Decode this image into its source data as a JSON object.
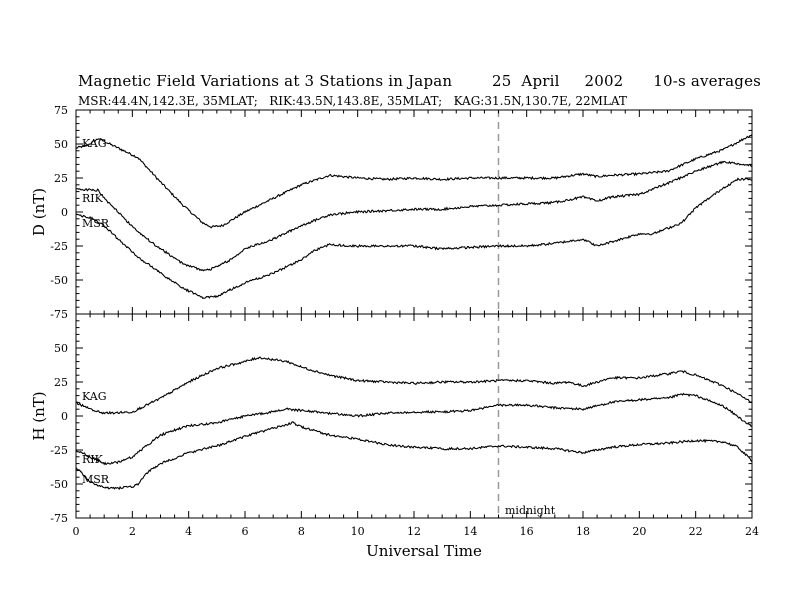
{
  "title": "Magnetic Field Variations at 3 Stations in Japan        25  April     2002      10-s averages",
  "subtitle": "MSR:44.4N,142.3E, 35MLAT;   RIK:43.5N,143.8E, 35MLAT;   KAG:31.5N,130.7E, 22MLAT",
  "chart_data": [
    {
      "type": "line",
      "ylabel": "D (nT)",
      "xlabel": "",
      "xlim": [
        0,
        24
      ],
      "ylim": [
        -75,
        75
      ],
      "yticks": [
        "75",
        "50",
        "25",
        "0",
        "-25",
        "-50",
        "-75"
      ],
      "series": [
        {
          "name": "KAG",
          "x": [
            0,
            0.4,
            0.8,
            1.0,
            1.5,
            2.2,
            3.0,
            3.8,
            4.5,
            4.8,
            5.2,
            6.0,
            7.0,
            8.0,
            9.0,
            10.0,
            11.0,
            12.0,
            13.0,
            14.0,
            15.0,
            16.0,
            17.0,
            18.0,
            18.5,
            19.0,
            20.0,
            21.0,
            22.0,
            23.0,
            24.0
          ],
          "y": [
            47,
            49,
            54,
            52,
            47,
            40,
            22,
            5,
            -8,
            -11,
            -10,
            0,
            10,
            20,
            27,
            25,
            24,
            25,
            24,
            25,
            25,
            25,
            25,
            28,
            26,
            27,
            28,
            30,
            39,
            46,
            57
          ]
        },
        {
          "name": "RIK",
          "x": [
            0,
            0.8,
            1.0,
            1.5,
            2.2,
            3.0,
            3.8,
            4.5,
            4.8,
            5.5,
            6.0,
            7.0,
            8.0,
            9.0,
            10.0,
            11.0,
            12.0,
            13.0,
            14.0,
            15.0,
            16.0,
            17.0,
            18.0,
            18.5,
            19.0,
            20.0,
            21.0,
            22.0,
            23.0,
            24.0
          ],
          "y": [
            17,
            16,
            10,
            0,
            -15,
            -27,
            -38,
            -43,
            -42,
            -35,
            -27,
            -20,
            -10,
            -2,
            0,
            1,
            2,
            2,
            4,
            5,
            6,
            7,
            11,
            8,
            11,
            13,
            21,
            30,
            37,
            34
          ]
        },
        {
          "name": "MSR",
          "x": [
            0,
            0.5,
            1.0,
            1.5,
            2.2,
            3.0,
            3.8,
            4.5,
            5.0,
            5.5,
            6.0,
            7.0,
            8.0,
            8.5,
            9.0,
            10.0,
            11.0,
            12.0,
            13.0,
            14.0,
            15.0,
            16.0,
            17.0,
            18.0,
            18.5,
            19.0,
            20.0,
            20.5,
            21.0,
            21.5,
            22.0,
            23.0,
            23.5,
            24.0
          ],
          "y": [
            -2,
            -4,
            -10,
            -20,
            -33,
            -45,
            -56,
            -63,
            -62,
            -57,
            -52,
            -45,
            -35,
            -28,
            -24,
            -25,
            -25,
            -25,
            -27,
            -26,
            -25,
            -25,
            -23,
            -20,
            -25,
            -22,
            -16,
            -16,
            -12,
            -8,
            3,
            18,
            24,
            24
          ]
        }
      ]
    },
    {
      "type": "line",
      "ylabel": "H (nT)",
      "xlabel": "Universal Time",
      "xlim": [
        0,
        24
      ],
      "ylim": [
        -75,
        75
      ],
      "xticks": [
        "0",
        "2",
        "4",
        "6",
        "8",
        "10",
        "12",
        "14",
        "16",
        "18",
        "20",
        "22",
        "24"
      ],
      "yticks": [
        "",
        "50",
        "25",
        "0",
        "-25",
        "-50",
        "-75"
      ],
      "series": [
        {
          "name": "KAG",
          "x": [
            0,
            0.5,
            1.0,
            2.0,
            2.5,
            3.0,
            4.0,
            5.0,
            6.0,
            6.5,
            7.5,
            8.0,
            9.0,
            10.0,
            11.0,
            12.0,
            13.0,
            14.0,
            15.0,
            16.0,
            17.0,
            17.5,
            18.0,
            19.0,
            20.0,
            21.0,
            21.5,
            22.0,
            23.0,
            24.0
          ],
          "y": [
            10,
            5,
            2,
            3,
            8,
            13,
            25,
            35,
            40,
            43,
            40,
            36,
            30,
            26,
            25,
            24,
            25,
            25,
            26,
            26,
            24,
            25,
            22,
            28,
            28,
            31,
            33,
            30,
            22,
            10
          ]
        },
        {
          "name": "RIK",
          "x": [
            0,
            0.5,
            1.0,
            1.5,
            2.0,
            2.5,
            3.0,
            4.0,
            5.0,
            6.0,
            7.0,
            7.5,
            8.0,
            9.0,
            10.0,
            11.0,
            12.0,
            13.0,
            14.0,
            15.0,
            16.0,
            17.0,
            18.0,
            19.0,
            20.0,
            21.0,
            21.5,
            22.0,
            23.0,
            24.0
          ],
          "y": [
            -25,
            -30,
            -35,
            -34,
            -30,
            -22,
            -14,
            -7,
            -5,
            0,
            3,
            5,
            4,
            2,
            0,
            2,
            3,
            3,
            4,
            8,
            8,
            6,
            5,
            10,
            12,
            13,
            16,
            15,
            7,
            -8
          ]
        },
        {
          "name": "MSR",
          "x": [
            0,
            0.5,
            1.0,
            1.5,
            2.0,
            2.2,
            2.5,
            3.0,
            4.0,
            5.0,
            6.0,
            7.0,
            7.7,
            8.0,
            9.0,
            10.0,
            11.0,
            12.0,
            13.0,
            14.0,
            15.0,
            16.0,
            17.0,
            18.0,
            19.0,
            20.0,
            21.0,
            22.0,
            23.0,
            23.5,
            24.0
          ],
          "y": [
            -38,
            -48,
            -53,
            -53,
            -52,
            -50,
            -42,
            -35,
            -27,
            -22,
            -15,
            -9,
            -5,
            -8,
            -14,
            -17,
            -21,
            -23,
            -24,
            -24,
            -22,
            -23,
            -24,
            -27,
            -23,
            -21,
            -20,
            -18,
            -19,
            -23,
            -33
          ]
        }
      ]
    }
  ],
  "labels": {
    "d_kag": "KAG",
    "d_rik": "RIK",
    "d_msr": "MSR",
    "h_kag": "KAG",
    "h_rik": "RIK",
    "h_msr": "MSR",
    "midnight": "midnight"
  },
  "midnight_ut": 15,
  "colors": {
    "line": "#000000",
    "midnight_marker": "#999999"
  }
}
